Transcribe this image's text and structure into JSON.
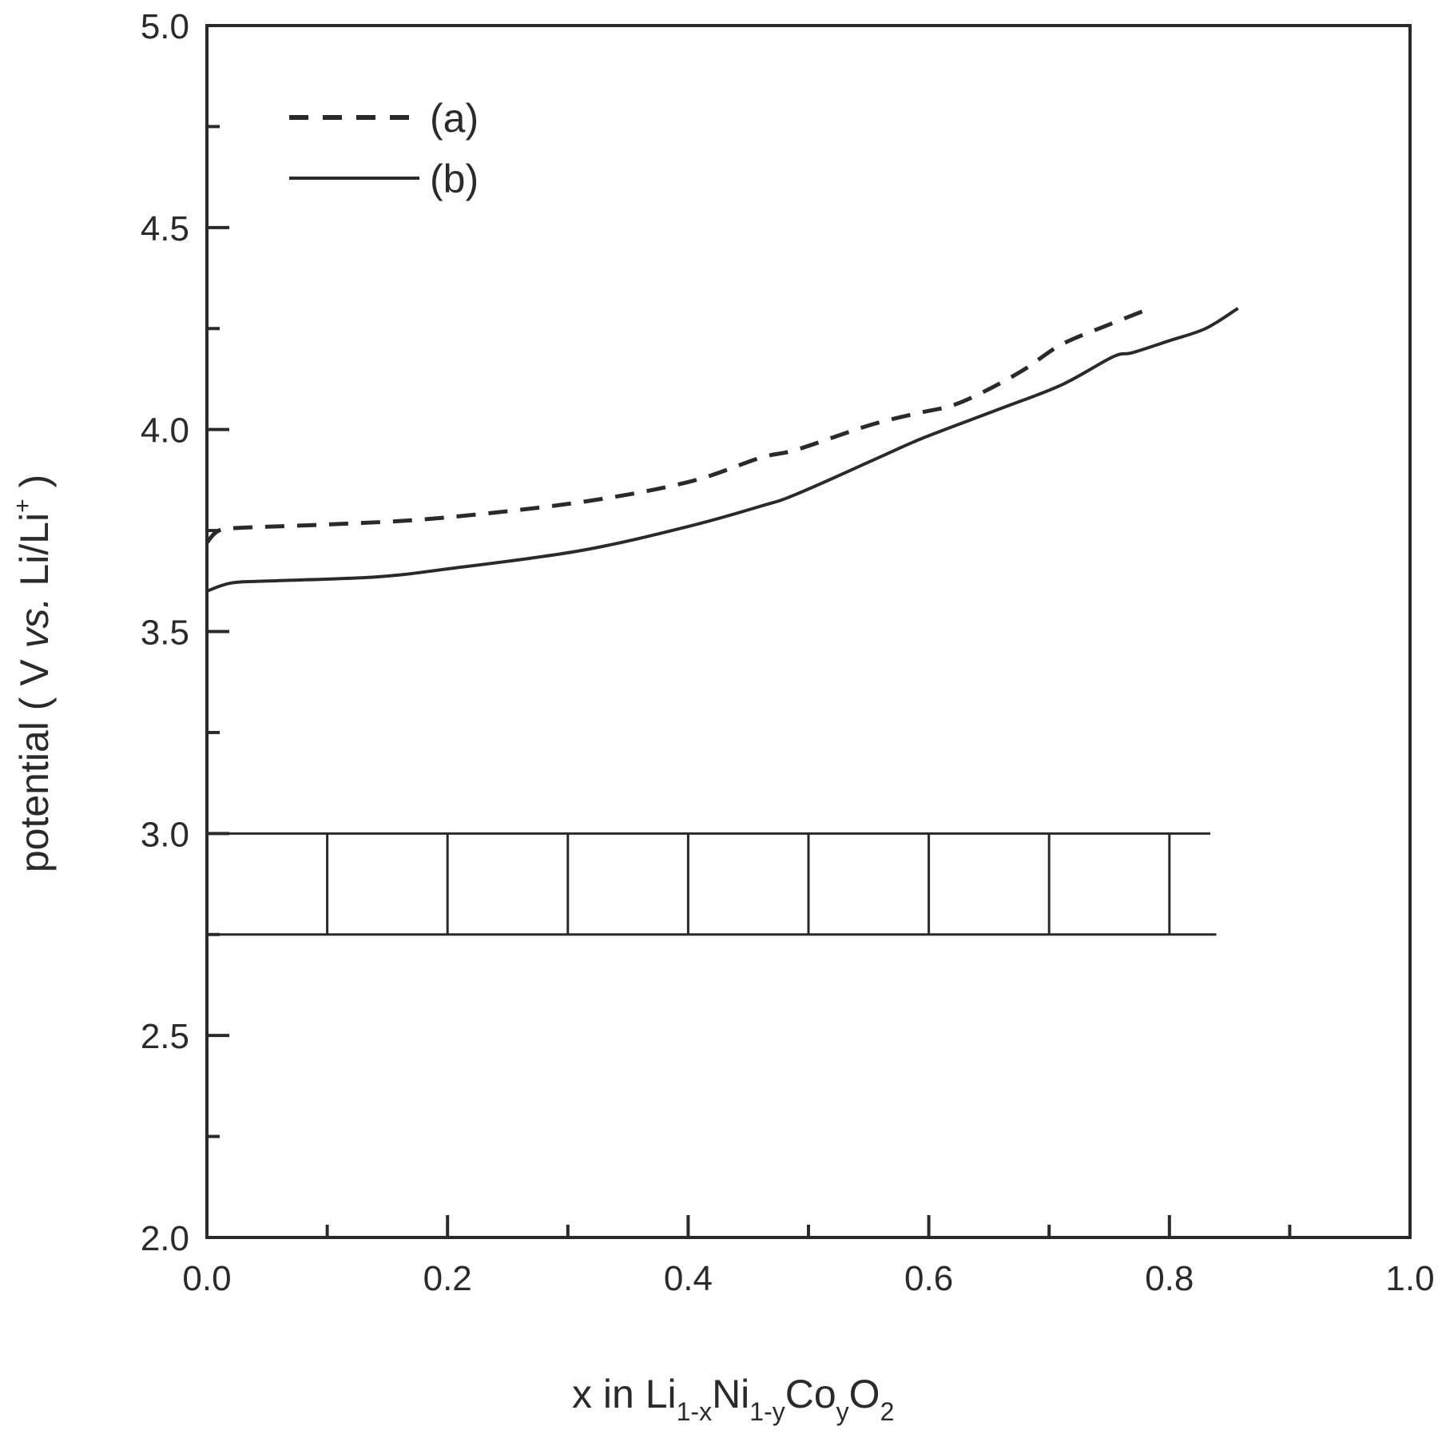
{
  "chart_data": {
    "type": "line",
    "title": "",
    "xlabel": "x in Li1-xNi1-yCoyO2",
    "xlabel_parts": {
      "main1": "x in Li",
      "sub1": "1-x",
      "main2": "Ni",
      "sub2": "1-y",
      "main3": "Co",
      "sub3": "y",
      "main4": "O",
      "sub4": "2"
    },
    "ylabel": "potential ( V vs. Li/Li+ )",
    "ylabel_parts": {
      "pre": "potential ( V ",
      "italic": "vs.",
      "post": " Li/Li",
      "sup": "+",
      "close": " )"
    },
    "xlim": [
      0.0,
      1.0
    ],
    "ylim": [
      2.0,
      5.0
    ],
    "x_ticks": [
      "0.0",
      "0.2",
      "0.4",
      "0.6",
      "0.8",
      "1.0"
    ],
    "y_ticks": [
      "2.0",
      "2.5",
      "3.0",
      "3.5",
      "4.0",
      "4.5",
      "5.0"
    ],
    "grid": false,
    "legend_position": "upper left",
    "series": [
      {
        "name": "(a)",
        "style": "dashed",
        "x": [
          0.0,
          0.01,
          0.03,
          0.1,
          0.19,
          0.31,
          0.4,
          0.46,
          0.49,
          0.55,
          0.59,
          0.62,
          0.65,
          0.68,
          0.71,
          0.75,
          0.784
        ],
        "y": [
          3.72,
          3.75,
          3.757,
          3.765,
          3.78,
          3.82,
          3.87,
          3.93,
          3.95,
          4.01,
          4.04,
          4.06,
          4.1,
          4.15,
          4.21,
          4.26,
          4.3
        ]
      },
      {
        "name": "(b)",
        "style": "solid",
        "x": [
          0.0,
          0.02,
          0.05,
          0.14,
          0.2,
          0.31,
          0.4,
          0.46,
          0.49,
          0.558,
          0.596,
          0.658,
          0.71,
          0.753,
          0.769,
          0.8,
          0.83,
          0.857
        ],
        "y": [
          3.6,
          3.62,
          3.625,
          3.635,
          3.655,
          3.7,
          3.76,
          3.81,
          3.84,
          3.93,
          3.98,
          4.05,
          4.11,
          4.18,
          4.19,
          4.22,
          4.25,
          4.3
        ]
      }
    ],
    "annotations": {
      "ladder": {
        "description": "two-phase region ladder between 2.75 V and 3.0 V",
        "y_top": 3.0,
        "y_bottom": 2.75,
        "x_start": 0.0,
        "x_end_top": 0.834,
        "x_end_bottom": 0.839,
        "rungs_x": [
          0.1,
          0.2,
          0.3,
          0.4,
          0.5,
          0.6,
          0.7,
          0.8
        ]
      }
    }
  },
  "legend": {
    "a_label": "(a)",
    "b_label": "(b)"
  },
  "colors": {
    "line": "#2a2a2a",
    "background": "#ffffff"
  }
}
